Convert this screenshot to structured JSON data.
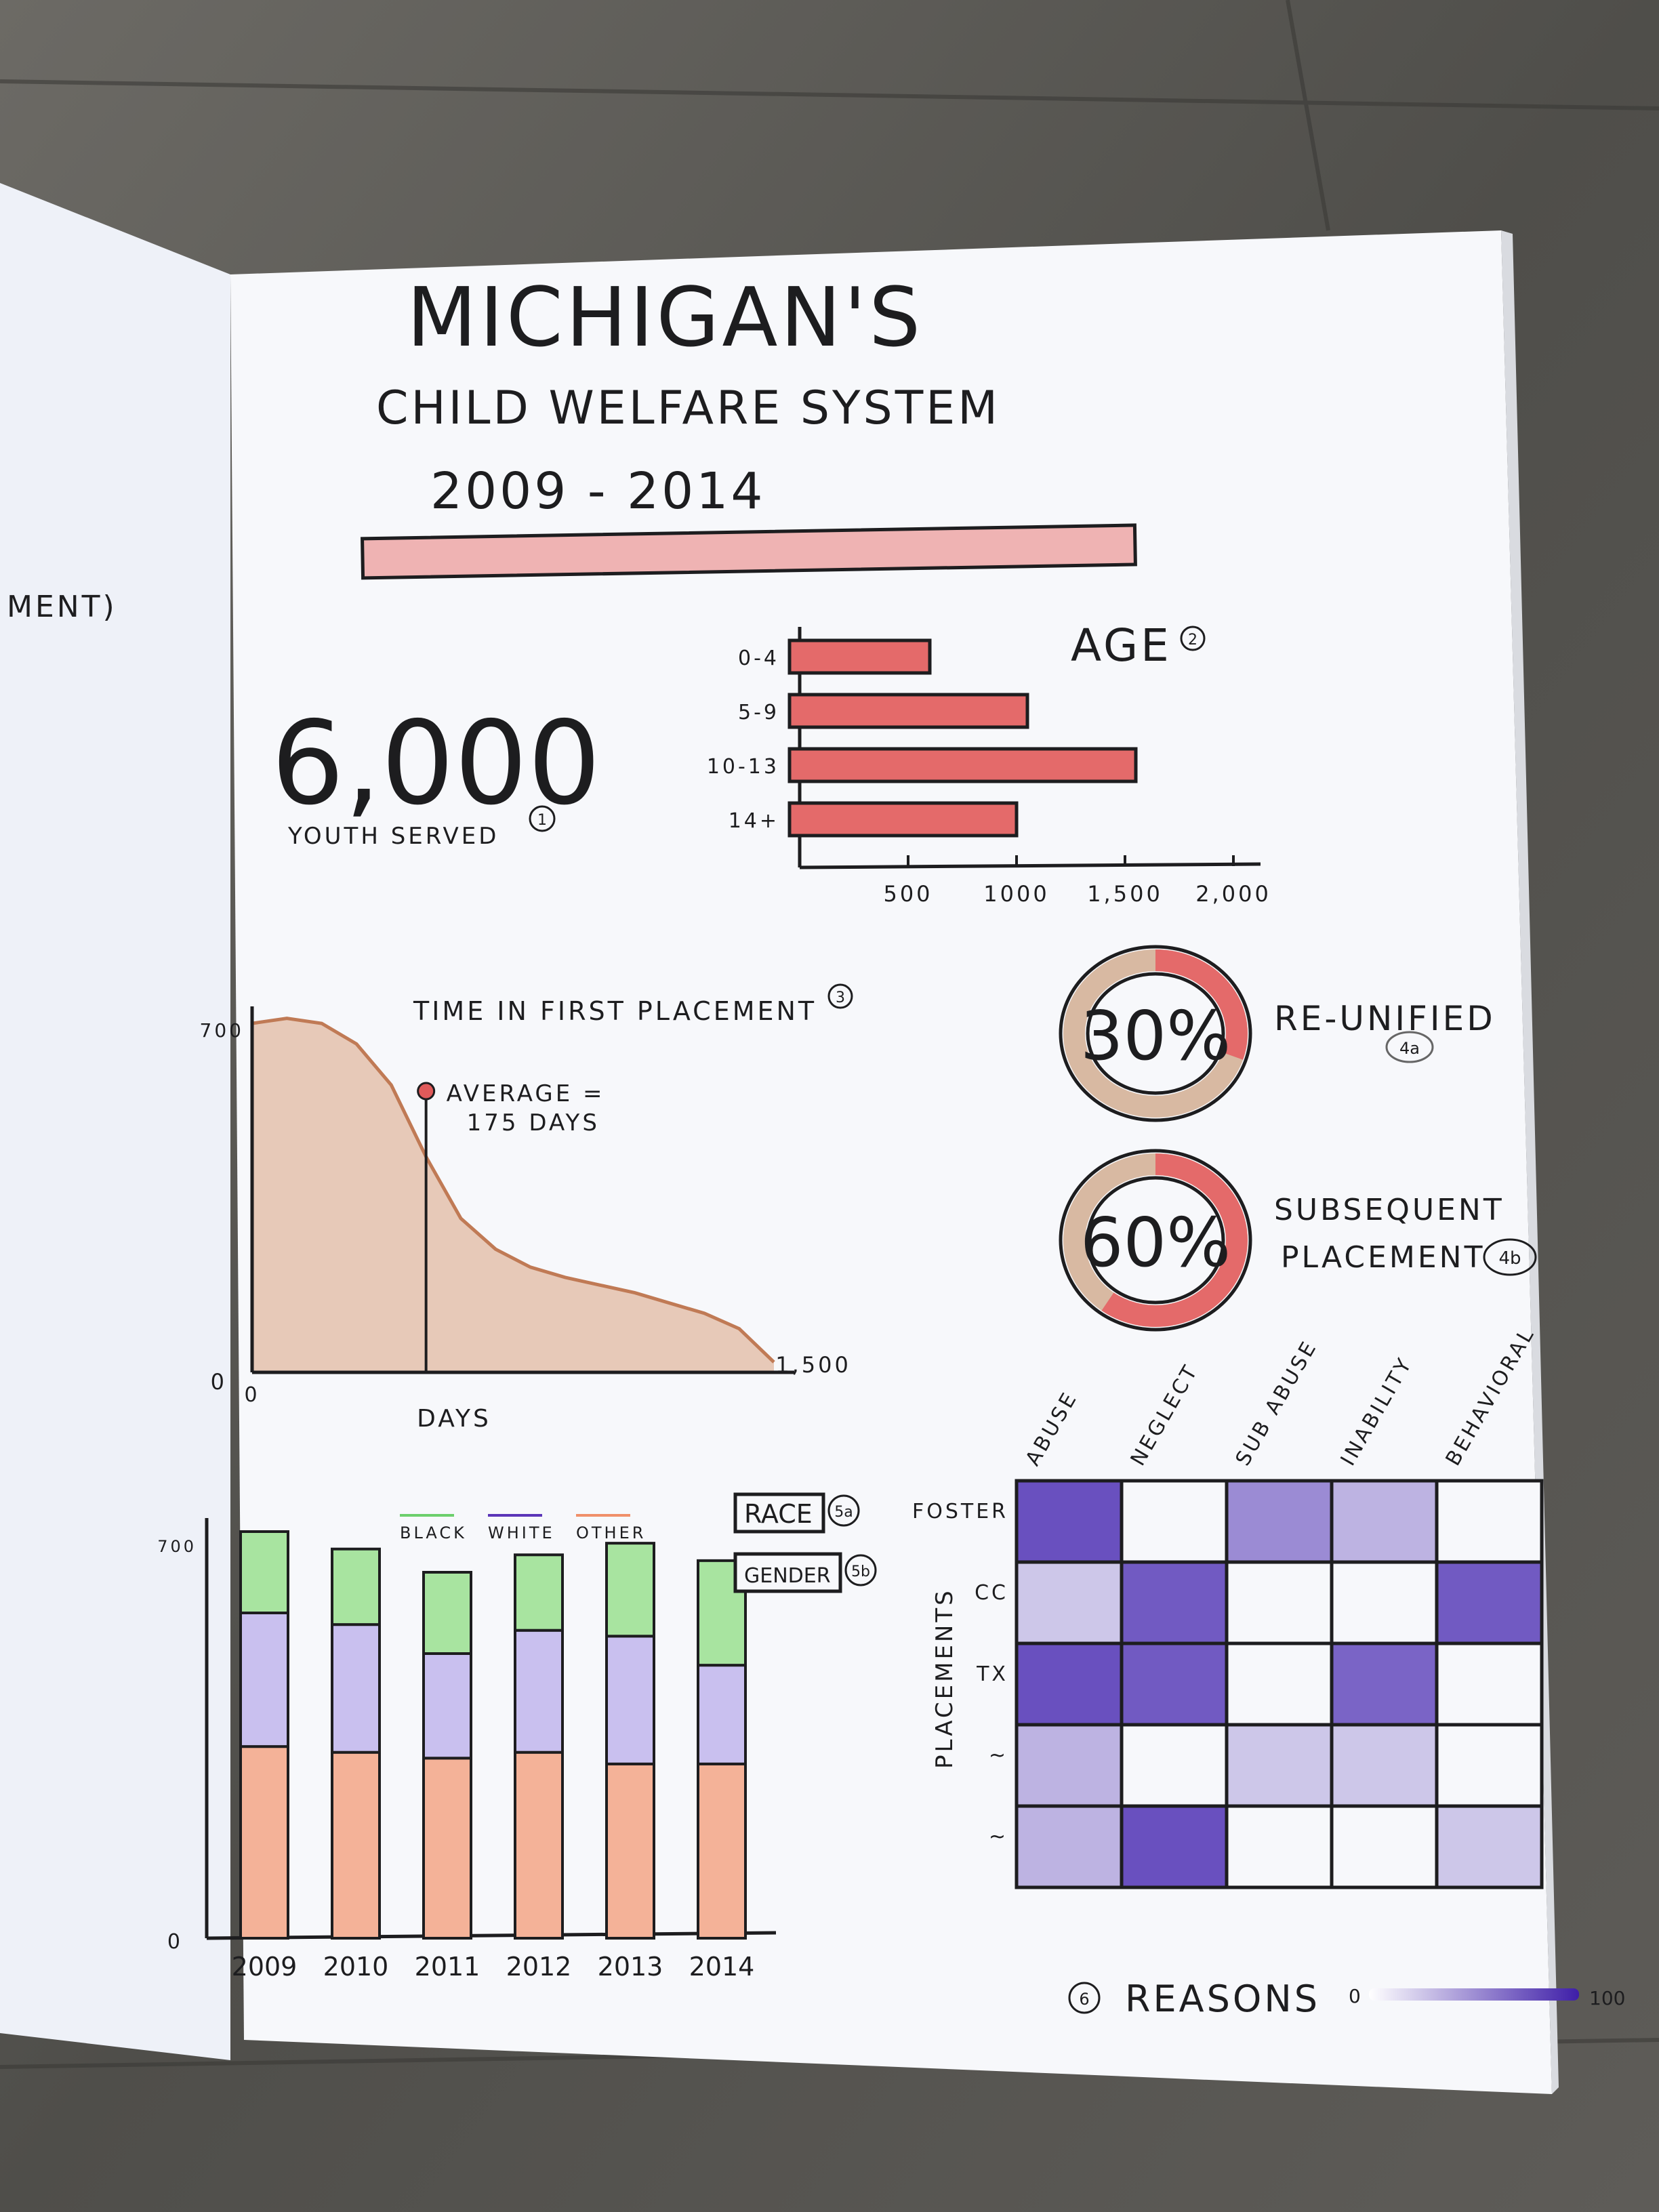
{
  "header": {
    "title": "MICHIGAN'S",
    "subtitle": "CHILD WELFARE SYSTEM",
    "years": "2009 - 2014"
  },
  "colors": {
    "red": "#e05a5a",
    "purple": "#5b35b8",
    "green": "#6ccf6c",
    "orange": "#f0906a",
    "lavender": "#a99ae0"
  },
  "stat_youth": {
    "value": "6,000",
    "label": "YOUTH SERVED",
    "note": "1"
  },
  "reunified": {
    "value": "30%",
    "label": "RE-UNIFIED",
    "note": "4a",
    "fraction": 0.3
  },
  "subsequent": {
    "value": "60%",
    "label_line1": "SUBSEQUENT",
    "label_line2": "PLACEMENT",
    "note": "4b",
    "fraction": 0.6
  },
  "side_text": "MENT)",
  "chart_data": [
    {
      "type": "bar",
      "orientation": "horizontal",
      "title": "AGE",
      "note": "2",
      "categories": [
        "0-4",
        "5-9",
        "10-13",
        "14+"
      ],
      "values": [
        600,
        1050,
        1550,
        1000
      ],
      "xticks": [
        "500",
        "1000",
        "1,500",
        "2,000"
      ],
      "xlim": [
        0,
        2000
      ]
    },
    {
      "type": "area",
      "title": "TIME IN FIRST PLACEMENT",
      "note": "3",
      "xlabel": "DAYS",
      "x": [
        0,
        100,
        200,
        300,
        400,
        500,
        600,
        700,
        800,
        900,
        1000,
        1100,
        1200,
        1300,
        1400,
        1500
      ],
      "values": [
        680,
        690,
        680,
        640,
        560,
        420,
        300,
        240,
        205,
        185,
        170,
        155,
        135,
        115,
        85,
        20
      ],
      "xlim": [
        0,
        1500
      ],
      "ylim": [
        0,
        700
      ],
      "yticks": [
        "0",
        "700"
      ],
      "xticks": [
        "0",
        "1,500"
      ],
      "annotation": {
        "x": 500,
        "line1": "AVERAGE =",
        "line2": "175 DAYS"
      }
    },
    {
      "type": "bar",
      "stacked": true,
      "categories": [
        "2009",
        "2010",
        "2011",
        "2012",
        "2013",
        "2014"
      ],
      "legend_position": "top",
      "series": [
        {
          "name": "OTHER",
          "values": [
            330,
            320,
            310,
            320,
            300,
            300
          ]
        },
        {
          "name": "WHITE",
          "values": [
            230,
            220,
            180,
            210,
            220,
            170
          ]
        },
        {
          "name": "BLACK",
          "values": [
            140,
            130,
            140,
            130,
            160,
            180
          ]
        }
      ],
      "ylim": [
        0,
        700
      ],
      "yticks": [
        "0",
        "700"
      ],
      "toggles": [
        {
          "label": "RACE",
          "note": "5a"
        },
        {
          "label": "GENDER",
          "note": "5b"
        }
      ]
    },
    {
      "type": "heatmap",
      "x_categories": [
        "ABUSE",
        "NEGLECT",
        "SUB ABUSE",
        "INABILITY",
        "BEHAVIORAL"
      ],
      "y_categories": [
        "FOSTER",
        "CC",
        "TX",
        "~",
        "~"
      ],
      "ylabel": "PLACEMENTS",
      "xlabel": "REASONS",
      "note": "6",
      "values": [
        [
          85,
          0,
          55,
          35,
          0
        ],
        [
          25,
          80,
          0,
          0,
          80
        ],
        [
          85,
          80,
          0,
          75,
          0
        ],
        [
          35,
          0,
          25,
          25,
          0
        ],
        [
          35,
          85,
          0,
          0,
          25
        ]
      ],
      "scale": {
        "min": "0",
        "max": "100"
      }
    }
  ]
}
